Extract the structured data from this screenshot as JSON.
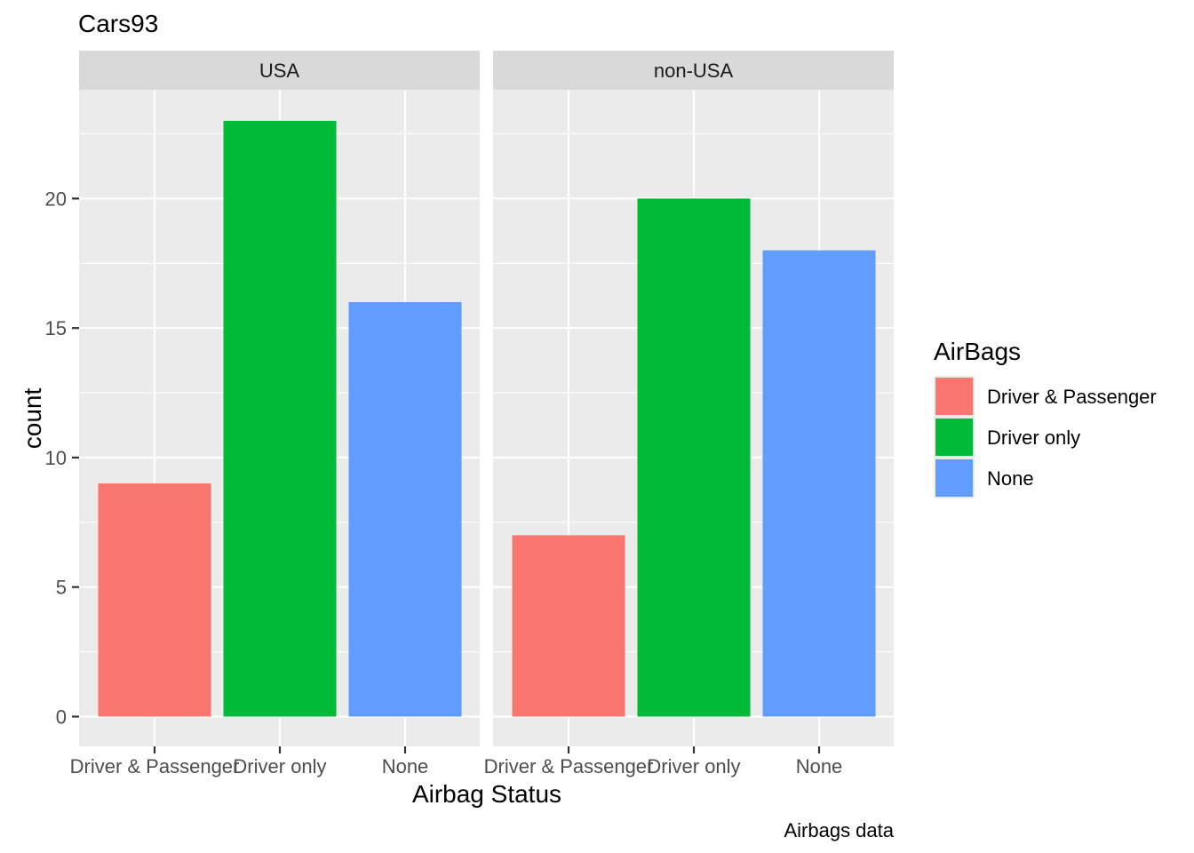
{
  "chart_data": {
    "type": "bar",
    "title": "Cars93",
    "xlabel": "Airbag Status",
    "ylabel": "count",
    "caption": "Airbags data",
    "categories": [
      "Driver & Passenger",
      "Driver only",
      "None"
    ],
    "yticks": [
      "0",
      "5",
      "10",
      "15",
      "20"
    ],
    "ylim": [
      0,
      24
    ],
    "facets": [
      {
        "name": "USA",
        "values": [
          9,
          23,
          16
        ]
      },
      {
        "name": "non-USA",
        "values": [
          7,
          20,
          18
        ]
      }
    ],
    "legend": {
      "title": "AirBags",
      "position": "right",
      "items": [
        "Driver & Passenger",
        "Driver only",
        "None"
      ]
    },
    "colors": [
      "#F8766D",
      "#00BA38",
      "#619CFF"
    ],
    "grid": true
  }
}
